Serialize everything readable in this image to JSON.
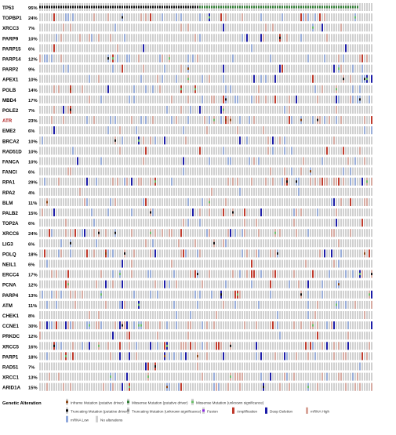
{
  "chart_data": {
    "type": "heatmap",
    "title": "",
    "genes": [
      {
        "name": "TP53",
        "pct": "95%",
        "pct_value": 95,
        "color": "#000000"
      },
      {
        "name": "TOPBP1",
        "pct": "24%",
        "pct_value": 24,
        "color": "#000000"
      },
      {
        "name": "XRCC3",
        "pct": "7%",
        "pct_value": 7,
        "color": "#000000"
      },
      {
        "name": "PARP9",
        "pct": "10%",
        "pct_value": 10,
        "color": "#000000"
      },
      {
        "name": "PARP15",
        "pct": "6%",
        "pct_value": 6,
        "color": "#000000"
      },
      {
        "name": "PARP14",
        "pct": "12%",
        "pct_value": 12,
        "color": "#000000"
      },
      {
        "name": "PARP2",
        "pct": "9%",
        "pct_value": 9,
        "color": "#000000"
      },
      {
        "name": "APEX1",
        "pct": "10%",
        "pct_value": 10,
        "color": "#000000"
      },
      {
        "name": "POLB",
        "pct": "14%",
        "pct_value": 14,
        "color": "#000000"
      },
      {
        "name": "MBD4",
        "pct": "17%",
        "pct_value": 17,
        "color": "#000000"
      },
      {
        "name": "POLE2",
        "pct": "7%",
        "pct_value": 7,
        "color": "#000000"
      },
      {
        "name": "ATR",
        "pct": "23%",
        "pct_value": 23,
        "color": "#b22222"
      },
      {
        "name": "EME2",
        "pct": "6%",
        "pct_value": 6,
        "color": "#000000"
      },
      {
        "name": "BRCA2",
        "pct": "10%",
        "pct_value": 10,
        "color": "#000000"
      },
      {
        "name": "RAD51D",
        "pct": "10%",
        "pct_value": 10,
        "color": "#000000"
      },
      {
        "name": "FANCA",
        "pct": "10%",
        "pct_value": 10,
        "color": "#000000"
      },
      {
        "name": "FANCI",
        "pct": "6%",
        "pct_value": 6,
        "color": "#000000"
      },
      {
        "name": "RPA1",
        "pct": "29%",
        "pct_value": 29,
        "color": "#000000"
      },
      {
        "name": "RPA2",
        "pct": "4%",
        "pct_value": 4,
        "color": "#000000"
      },
      {
        "name": "BLM",
        "pct": "11%",
        "pct_value": 11,
        "color": "#000000"
      },
      {
        "name": "PALB2",
        "pct": "15%",
        "pct_value": 15,
        "color": "#000000"
      },
      {
        "name": "TOP2A",
        "pct": "6%",
        "pct_value": 6,
        "color": "#000000"
      },
      {
        "name": "XRCC6",
        "pct": "24%",
        "pct_value": 24,
        "color": "#000000"
      },
      {
        "name": "LIG3",
        "pct": "6%",
        "pct_value": 6,
        "color": "#000000"
      },
      {
        "name": "POLQ",
        "pct": "18%",
        "pct_value": 18,
        "color": "#000000"
      },
      {
        "name": "NEIL1",
        "pct": "6%",
        "pct_value": 6,
        "color": "#000000"
      },
      {
        "name": "ERCC4",
        "pct": "17%",
        "pct_value": 17,
        "color": "#000000"
      },
      {
        "name": "PCNA",
        "pct": "12%",
        "pct_value": 12,
        "color": "#000000"
      },
      {
        "name": "PARP4",
        "pct": "13%",
        "pct_value": 13,
        "color": "#000000"
      },
      {
        "name": "ATM",
        "pct": "11%",
        "pct_value": 11,
        "color": "#000000"
      },
      {
        "name": "CHEK1",
        "pct": "8%",
        "pct_value": 8,
        "color": "#000000"
      },
      {
        "name": "CCNE1",
        "pct": "30%",
        "pct_value": 30,
        "color": "#000000"
      },
      {
        "name": "PRKDC",
        "pct": "12%",
        "pct_value": 12,
        "color": "#000000"
      },
      {
        "name": "XRCC5",
        "pct": "16%",
        "pct_value": 16,
        "color": "#000000"
      },
      {
        "name": "PARP1",
        "pct": "18%",
        "pct_value": 18,
        "color": "#000000"
      },
      {
        "name": "RAD51",
        "pct": "7%",
        "pct_value": 7,
        "color": "#000000"
      },
      {
        "name": "XRCC1",
        "pct": "13%",
        "pct_value": 13,
        "color": "#000000"
      },
      {
        "name": "ARID1A",
        "pct": "15%",
        "pct_value": 15,
        "color": "#000000"
      }
    ],
    "legend": {
      "heading": "Genetic Alteration",
      "items": [
        {
          "label": "Inframe Mutation (putative driver)",
          "color": "#8b4513",
          "mark": "small"
        },
        {
          "label": "Missense Mutation (putative driver)",
          "color": "#2e7d32",
          "mark": "small"
        },
        {
          "label": "Missense Mutation (unknown significance)",
          "color": "#6abf69",
          "mark": "small"
        },
        {
          "label": "Truncating Mutation (putative driver)",
          "color": "#111111",
          "mark": "small"
        },
        {
          "label": "Truncating Mutation (unknown significance)",
          "color": "#8c8c8c",
          "mark": "small"
        },
        {
          "label": "Fusion",
          "color": "#8b2be2",
          "mark": "small"
        },
        {
          "label": "Amplification",
          "color": "#c0392b",
          "mark": "full"
        },
        {
          "label": "Deep Deletion",
          "color": "#1a1aa8",
          "mark": "full"
        },
        {
          "label": "mRNA High",
          "color": "#d9a59a",
          "mark": "outline"
        },
        {
          "label": "mRNA Low",
          "color": "#8fa8dc",
          "mark": "outline"
        },
        {
          "label": "No alterations",
          "color": "#d0d0d0",
          "mark": "full"
        }
      ]
    },
    "colors": {
      "background": "#d0d0d0",
      "mrna_high": "#d9a59a",
      "mrna_low": "#8fa8dc",
      "amplification": "#c0392b",
      "deep_deletion": "#1a1aa8",
      "missense_putative": "#2e7d32",
      "missense_unknown": "#6abf69",
      "truncating_putative": "#111111",
      "truncating_unknown": "#8c8c8c",
      "inframe_putative": "#8b4513",
      "fusion": "#8b2be2"
    }
  }
}
